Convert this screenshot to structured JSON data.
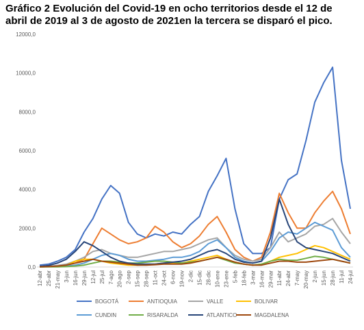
{
  "chart_data": {
    "type": "line",
    "title": "Gráfico 2 Evolución del Covid-19 en ocho territorios desde el 12 de abril de 2019 al 3 de agosto de 2021en la tercera se disparó el pico.",
    "categories": [
      "12-abr",
      "25-abr",
      "21-may",
      "3-jun",
      "16-jun",
      "29-jun",
      "12-jul",
      "25-jul",
      "7-ago",
      "20-ago",
      "2-sep",
      "15-sep",
      "28-sep",
      "11-oct",
      "24-oct",
      "6-nov",
      "19-nov",
      "2-dic",
      "15-dic",
      "28-dic",
      "10-ene",
      "23-ene",
      "5-feb",
      "18-feb",
      "3-mar",
      "16-mar",
      "29-mar",
      "11-abr",
      "24-abr",
      "7-may",
      "20-may",
      "2-jun",
      "15-jun",
      "28-jun",
      "11-jul",
      "24-jul"
    ],
    "series": [
      {
        "name": "BOGOTÁ",
        "color": "#4472c4",
        "values": [
          100,
          150,
          300,
          500,
          900,
          1800,
          2500,
          3500,
          4200,
          3800,
          2300,
          1700,
          1500,
          1700,
          1600,
          1800,
          1700,
          2200,
          2600,
          3900,
          4700,
          5600,
          3000,
          1200,
          700,
          700,
          1000,
          3500,
          4500,
          4800,
          6500,
          8500,
          9500,
          10300,
          5500,
          3000
        ]
      },
      {
        "name": "ANTIOQUIA",
        "color": "#ed7d31",
        "values": [
          20,
          30,
          50,
          100,
          200,
          400,
          1200,
          2000,
          1700,
          1400,
          1200,
          1300,
          1500,
          2100,
          1800,
          1300,
          1000,
          1200,
          1600,
          2200,
          2600,
          1800,
          900,
          500,
          300,
          500,
          1800,
          3800,
          2800,
          2000,
          2000,
          2800,
          3400,
          3900,
          3000,
          1700
        ]
      },
      {
        "name": "VALLE",
        "color": "#a5a5a5",
        "values": [
          20,
          40,
          80,
          150,
          300,
          500,
          800,
          900,
          700,
          600,
          500,
          500,
          600,
          700,
          800,
          800,
          900,
          1000,
          1200,
          1400,
          1500,
          1000,
          600,
          400,
          300,
          400,
          1000,
          1800,
          1300,
          1500,
          1700,
          2100,
          2200,
          2500,
          1800,
          1200
        ]
      },
      {
        "name": "BOLIVAR",
        "color": "#ffc000",
        "values": [
          10,
          20,
          30,
          80,
          300,
          400,
          400,
          300,
          200,
          150,
          100,
          100,
          120,
          150,
          200,
          200,
          200,
          300,
          400,
          500,
          600,
          400,
          250,
          150,
          100,
          150,
          300,
          500,
          600,
          700,
          900,
          1100,
          1000,
          800,
          600,
          400
        ]
      },
      {
        "name": "CUNDIN",
        "color": "#5b9bd5",
        "values": [
          10,
          20,
          30,
          50,
          100,
          200,
          400,
          600,
          700,
          600,
          400,
          300,
          300,
          350,
          400,
          500,
          500,
          600,
          800,
          1200,
          1400,
          1000,
          500,
          300,
          200,
          300,
          800,
          1500,
          1800,
          1700,
          2000,
          2300,
          2100,
          1900,
          1000,
          500
        ]
      },
      {
        "name": "RISARALDA",
        "color": "#70ad47",
        "values": [
          5,
          10,
          10,
          20,
          50,
          100,
          200,
          300,
          300,
          250,
          200,
          200,
          250,
          300,
          300,
          250,
          200,
          250,
          300,
          400,
          500,
          350,
          200,
          150,
          100,
          150,
          300,
          400,
          350,
          350,
          450,
          550,
          500,
          400,
          300,
          200
        ]
      },
      {
        "name": "ATLANTICO",
        "color": "#264478",
        "values": [
          30,
          80,
          200,
          400,
          800,
          1300,
          1100,
          800,
          500,
          300,
          200,
          150,
          150,
          150,
          200,
          250,
          300,
          400,
          600,
          800,
          900,
          700,
          400,
          250,
          200,
          300,
          1500,
          3500,
          2200,
          1300,
          1000,
          900,
          800,
          700,
          500,
          300
        ]
      },
      {
        "name": "MAGDALENA",
        "color": "#9e480e",
        "values": [
          10,
          20,
          50,
          100,
          200,
          300,
          400,
          300,
          250,
          200,
          150,
          100,
          100,
          120,
          150,
          150,
          150,
          200,
          300,
          400,
          500,
          400,
          250,
          150,
          100,
          100,
          200,
          300,
          300,
          250,
          250,
          300,
          350,
          400,
          300,
          200
        ]
      }
    ],
    "ylim": [
      0,
      12000
    ],
    "yticks": [
      {
        "value": 0,
        "label": "0,0"
      },
      {
        "value": 2000,
        "label": "2000,0"
      },
      {
        "value": 4000,
        "label": "4000,0"
      },
      {
        "value": 6000,
        "label": "6000,0"
      },
      {
        "value": 8000,
        "label": "8000,0"
      },
      {
        "value": 10000,
        "label": "10000,0"
      },
      {
        "value": 12000,
        "label": "12000,0"
      }
    ],
    "legend": "bottom"
  }
}
